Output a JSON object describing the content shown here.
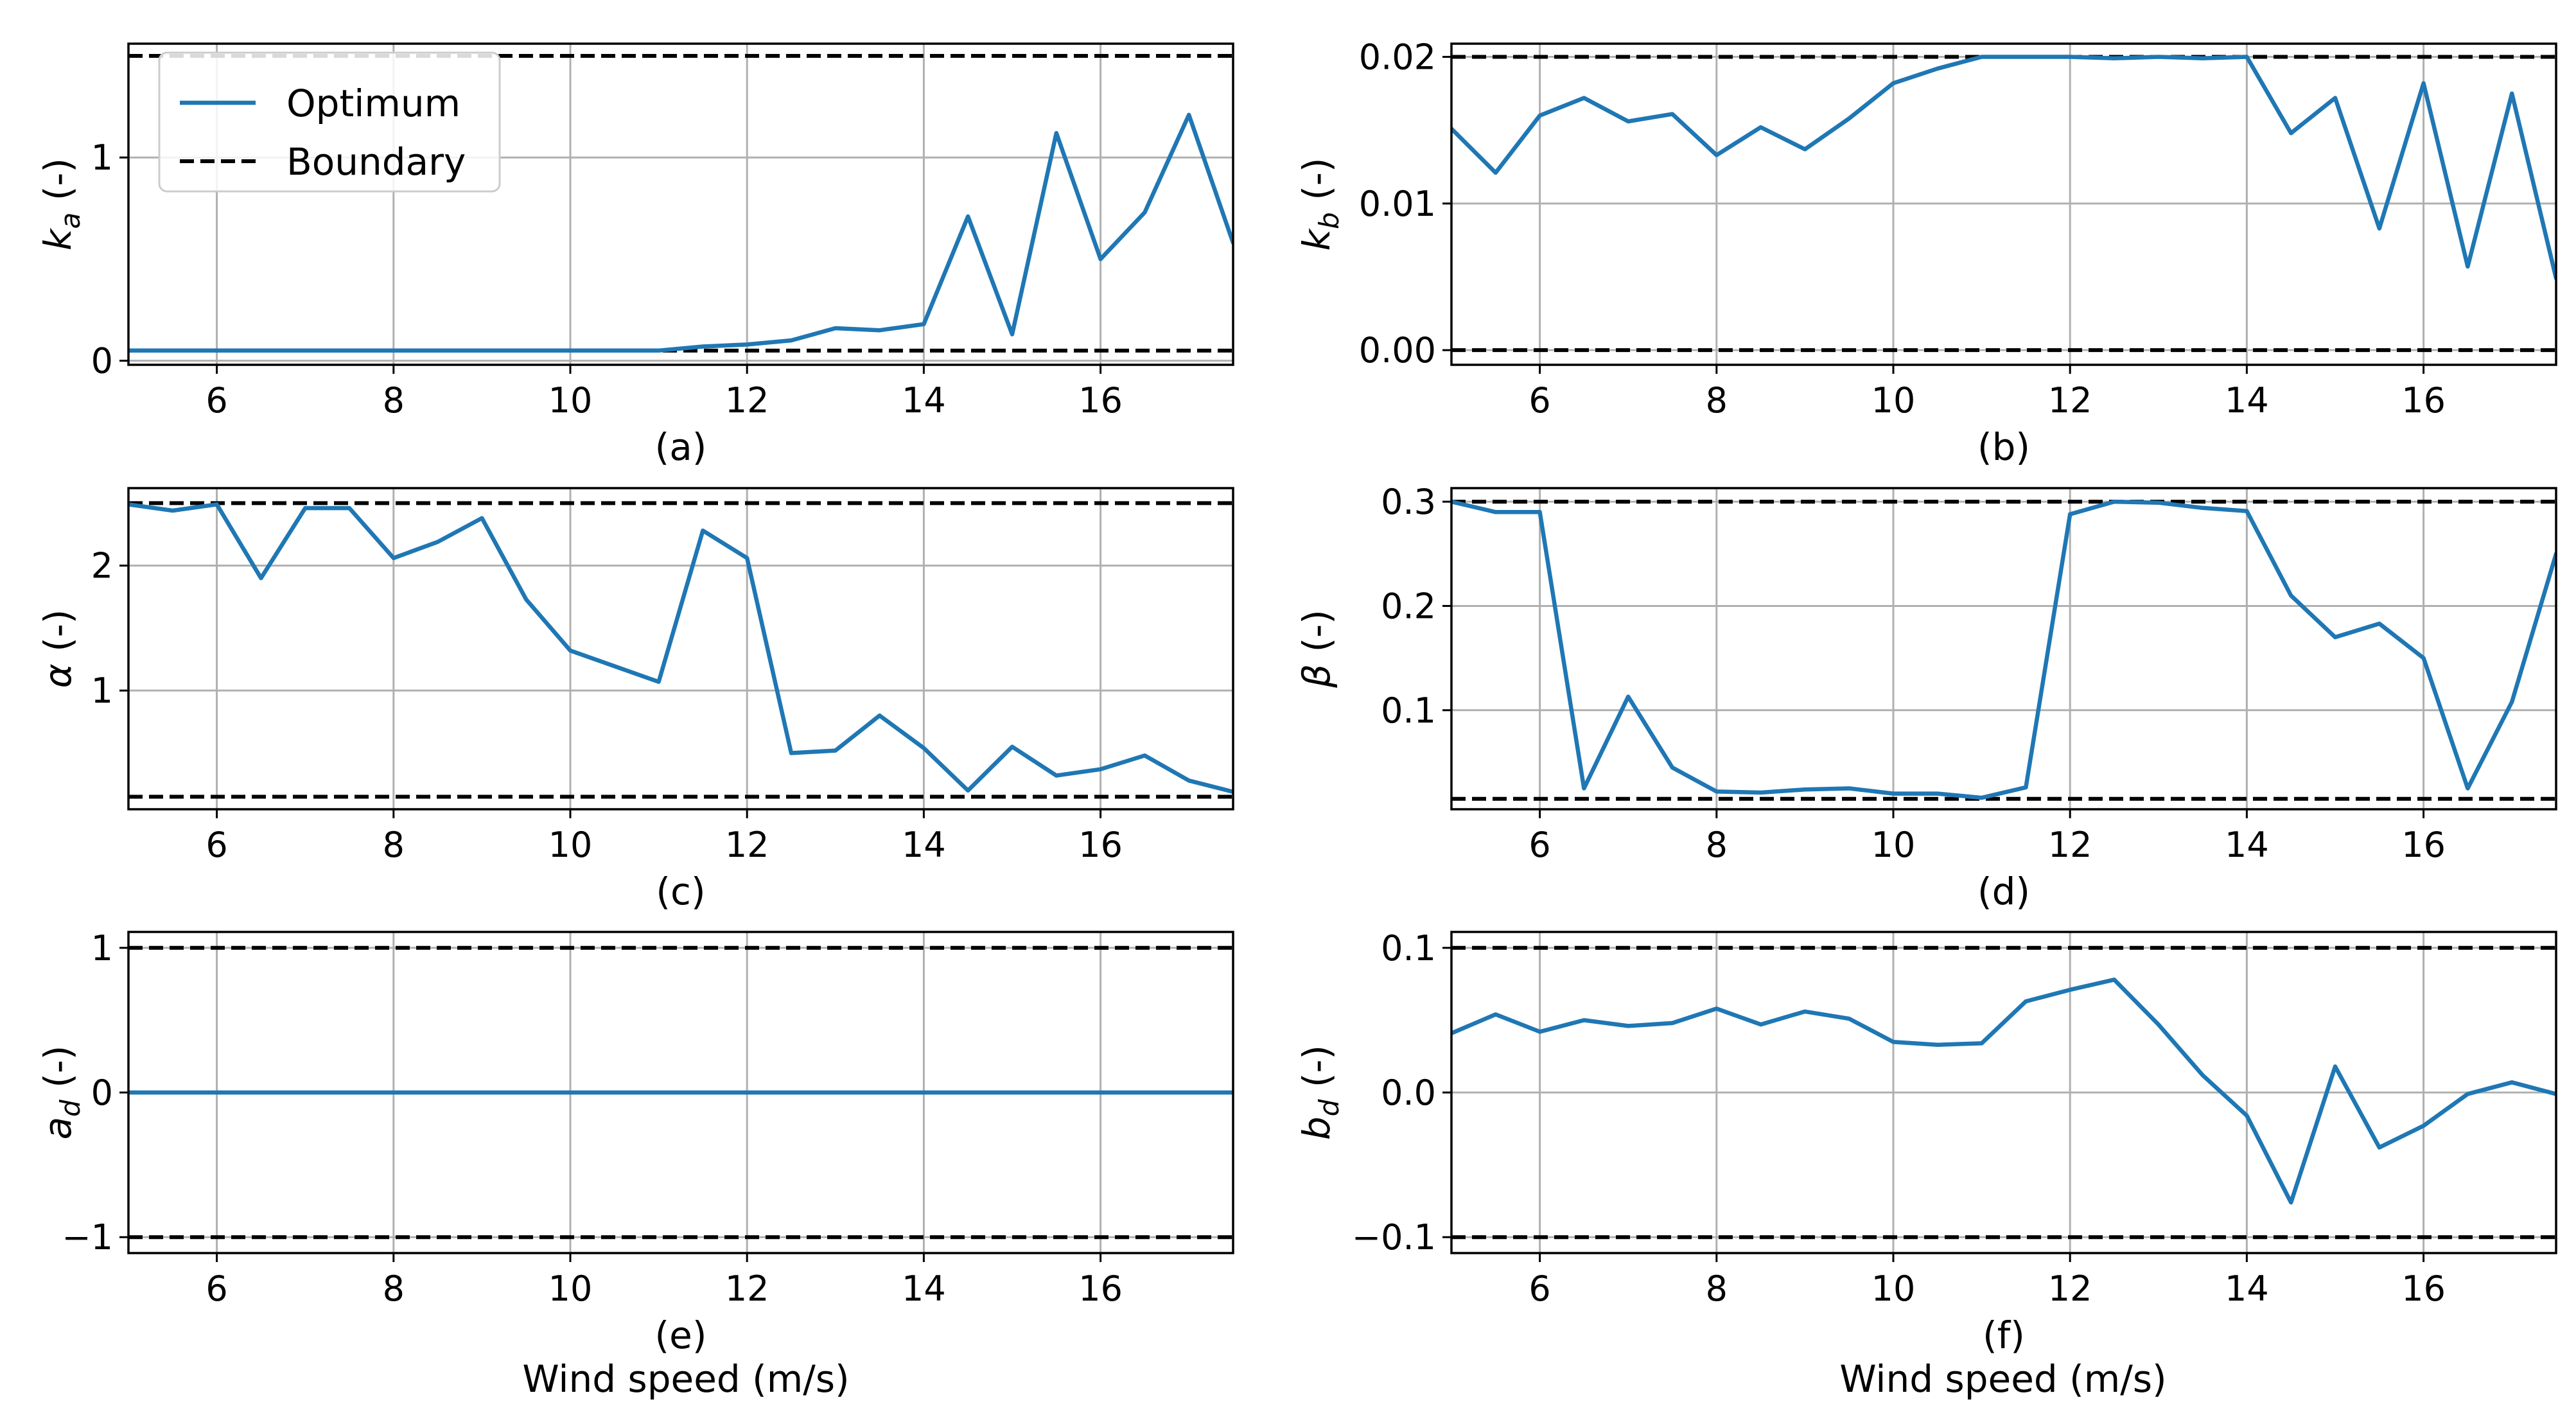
{
  "colors": {
    "optimum": "#1f77b4",
    "boundary": "#000000",
    "grid": "#b0b0b0"
  },
  "legend": {
    "optimum_label": "Optimum",
    "boundary_label": "Boundary",
    "location": "upper-left of panel (a)"
  },
  "xlabel": "Wind speed (m/s)",
  "chart_data": [
    {
      "type": "line",
      "panel": "(a)",
      "ylabel": {
        "symbol": "k",
        "subscript": "a",
        "unit": " (-)"
      },
      "xlim": [
        5,
        17.5
      ],
      "ylim": [
        -0.02,
        1.56
      ],
      "xticks": [
        6,
        8,
        10,
        12,
        14,
        16
      ],
      "yticks": [
        0,
        1
      ],
      "ytick_labels": [
        "0",
        "1"
      ],
      "boundary": [
        0.05,
        1.5
      ],
      "x": [
        5,
        5.5,
        6,
        6.5,
        7,
        7.5,
        8,
        8.5,
        9,
        9.5,
        10,
        10.5,
        11,
        11.5,
        12,
        12.5,
        13,
        13.5,
        14,
        14.5,
        15,
        15.5,
        16,
        16.5,
        17,
        17.5
      ],
      "series": [
        {
          "name": "Optimum",
          "values": [
            0.05,
            0.05,
            0.05,
            0.05,
            0.05,
            0.05,
            0.05,
            0.05,
            0.05,
            0.05,
            0.05,
            0.05,
            0.05,
            0.07,
            0.08,
            0.1,
            0.16,
            0.15,
            0.18,
            0.71,
            0.13,
            1.12,
            0.5,
            0.73,
            1.21,
            0.58
          ]
        }
      ]
    },
    {
      "type": "line",
      "panel": "(b)",
      "ylabel": {
        "symbol": "k",
        "subscript": "b",
        "unit": " (-)"
      },
      "xlim": [
        5,
        17.5
      ],
      "ylim": [
        -0.001,
        0.0209
      ],
      "xticks": [
        6,
        8,
        10,
        12,
        14,
        16
      ],
      "yticks": [
        0,
        0.01,
        0.02
      ],
      "ytick_labels": [
        "0.00",
        "0.01",
        "0.02"
      ],
      "boundary": [
        0.0,
        0.02
      ],
      "x": [
        5,
        5.5,
        6,
        6.5,
        7,
        7.5,
        8,
        8.5,
        9,
        9.5,
        10,
        10.5,
        11,
        11.5,
        12,
        12.5,
        13,
        13.5,
        14,
        14.5,
        15,
        15.5,
        16,
        16.5,
        17,
        17.5
      ],
      "series": [
        {
          "name": "Optimum",
          "values": [
            0.0151,
            0.0121,
            0.016,
            0.0172,
            0.0156,
            0.0161,
            0.0133,
            0.0152,
            0.0137,
            0.0158,
            0.0182,
            0.0192,
            0.02,
            0.02,
            0.02,
            0.0199,
            0.02,
            0.0199,
            0.02,
            0.0148,
            0.0172,
            0.0083,
            0.0182,
            0.0057,
            0.0175,
            0.0049
          ]
        }
      ]
    },
    {
      "type": "line",
      "panel": "(c)",
      "ylabel": {
        "symbol": "α",
        "subscript": "",
        "unit": " (-)"
      },
      "xlim": [
        5,
        17.5
      ],
      "ylim": [
        0.05,
        2.62
      ],
      "xticks": [
        6,
        8,
        10,
        12,
        14,
        16
      ],
      "yticks": [
        1,
        2
      ],
      "ytick_labels": [
        "1",
        "2"
      ],
      "boundary": [
        0.15,
        2.5
      ],
      "x": [
        5,
        5.5,
        6,
        6.5,
        7,
        7.5,
        8,
        8.5,
        9,
        9.5,
        10,
        11,
        11.5,
        12,
        12.5,
        13,
        13.5,
        14,
        14.5,
        15,
        15.5,
        16,
        16.5,
        17,
        17.5
      ],
      "series": [
        {
          "name": "Optimum",
          "values": [
            2.49,
            2.44,
            2.49,
            1.9,
            2.46,
            2.46,
            2.06,
            2.19,
            2.38,
            1.73,
            1.32,
            1.07,
            2.28,
            2.06,
            0.5,
            0.52,
            0.8,
            0.54,
            0.2,
            0.55,
            0.32,
            0.37,
            0.48,
            0.28,
            0.19
          ]
        }
      ]
    },
    {
      "type": "line",
      "panel": "(d)",
      "ylabel": {
        "symbol": "β",
        "subscript": "",
        "unit": " (-)"
      },
      "xlim": [
        5,
        17.5
      ],
      "ylim": [
        0.005,
        0.313
      ],
      "xticks": [
        6,
        8,
        10,
        12,
        14,
        16
      ],
      "yticks": [
        0.1,
        0.2,
        0.3
      ],
      "ytick_labels": [
        "0.1",
        "0.2",
        "0.3"
      ],
      "boundary": [
        0.015,
        0.3
      ],
      "x": [
        5,
        5.5,
        6,
        6.5,
        7,
        7.5,
        8,
        8.5,
        9,
        9.5,
        10,
        10.5,
        11,
        11.5,
        12,
        12.5,
        13,
        13.5,
        14,
        14.5,
        15,
        15.5,
        16,
        16.5,
        17,
        17.5
      ],
      "series": [
        {
          "name": "Optimum",
          "values": [
            0.3,
            0.29,
            0.29,
            0.025,
            0.113,
            0.045,
            0.022,
            0.021,
            0.024,
            0.025,
            0.02,
            0.02,
            0.016,
            0.026,
            0.288,
            0.3,
            0.299,
            0.294,
            0.291,
            0.21,
            0.17,
            0.183,
            0.15,
            0.025,
            0.108,
            0.25
          ]
        }
      ]
    },
    {
      "type": "line",
      "panel": "(e)",
      "ylabel": {
        "symbol": "a",
        "subscript": "d",
        "unit": " (-)"
      },
      "xlim": [
        5,
        17.5
      ],
      "ylim": [
        -1.11,
        1.11
      ],
      "xticks": [
        6,
        8,
        10,
        12,
        14,
        16
      ],
      "yticks": [
        -1,
        0,
        1
      ],
      "ytick_labels": [
        "−1",
        "0",
        "1"
      ],
      "boundary": [
        -1,
        1
      ],
      "x": [
        5,
        17.5
      ],
      "series": [
        {
          "name": "Optimum",
          "values": [
            0,
            0
          ]
        }
      ]
    },
    {
      "type": "line",
      "panel": "(f)",
      "ylabel": {
        "symbol": "b",
        "subscript": "d",
        "unit": " (-)"
      },
      "xlim": [
        5,
        17.5
      ],
      "ylim": [
        -0.111,
        0.111
      ],
      "xticks": [
        6,
        8,
        10,
        12,
        14,
        16
      ],
      "yticks": [
        -0.1,
        0,
        0.1
      ],
      "ytick_labels": [
        "−0.1",
        "0.0",
        "0.1"
      ],
      "boundary": [
        -0.1,
        0.1
      ],
      "x": [
        5,
        5.5,
        6,
        6.5,
        7,
        7.5,
        8,
        8.5,
        9,
        9.5,
        10,
        10.5,
        11,
        11.5,
        12,
        12.5,
        13,
        13.5,
        14,
        14.5,
        15,
        15.5,
        16,
        16.5,
        17,
        17.5
      ],
      "series": [
        {
          "name": "Optimum",
          "values": [
            0.041,
            0.054,
            0.042,
            0.05,
            0.046,
            0.048,
            0.058,
            0.047,
            0.056,
            0.051,
            0.035,
            0.033,
            0.034,
            0.063,
            0.071,
            0.078,
            0.047,
            0.012,
            -0.016,
            -0.076,
            0.018,
            -0.038,
            -0.023,
            -0.001,
            0.007,
            -0.001
          ]
        }
      ]
    }
  ]
}
